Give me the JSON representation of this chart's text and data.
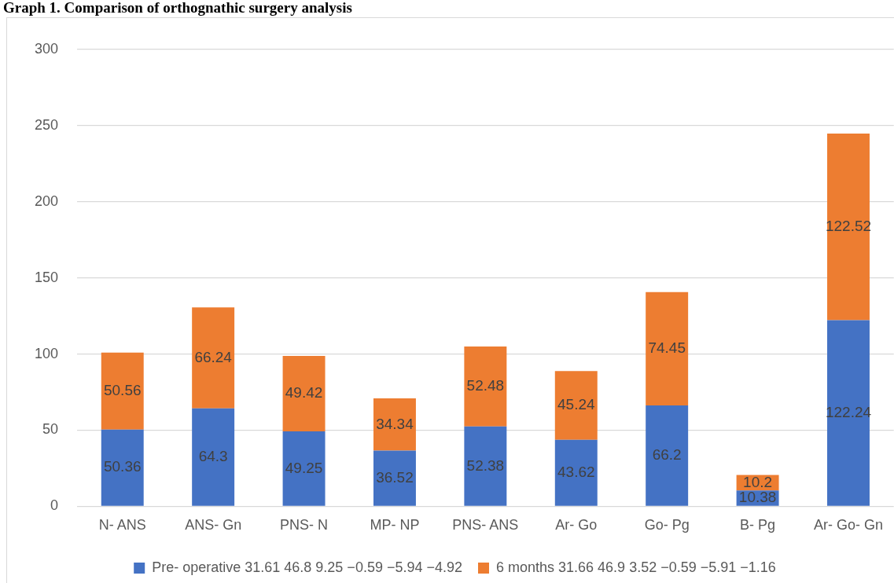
{
  "chart_data": {
    "type": "bar",
    "title": "Graph 1. Comparison of orthognathic surgery analysis",
    "stacked": true,
    "categories": [
      "N- ANS",
      "ANS- Gn",
      "PNS- N",
      "MP- NP",
      "PNS- ANS",
      "Ar- Go",
      "Go- Pg",
      "B- Pg",
      "Ar- Go- Gn"
    ],
    "series": [
      {
        "name": "Pre- operative 31.61 46.8 9.25 −0.59 −5.94 −4.92",
        "color": "#4472c4",
        "values": [
          50.36,
          64.3,
          49.25,
          36.52,
          52.38,
          43.62,
          66.2,
          10.38,
          122.24
        ]
      },
      {
        "name": "6 months 31.66 46.9 3.52 −0.59 −5.91 −1.16",
        "color": "#ed7d31",
        "values": [
          50.56,
          66.24,
          49.42,
          34.34,
          52.48,
          45.24,
          74.45,
          10.2,
          122.52
        ]
      }
    ],
    "ylim": [
      0,
      300
    ],
    "yticks": [
      0,
      50,
      100,
      150,
      200,
      250,
      300
    ],
    "grid": "y",
    "legend": "bottom",
    "data_labels": true
  }
}
